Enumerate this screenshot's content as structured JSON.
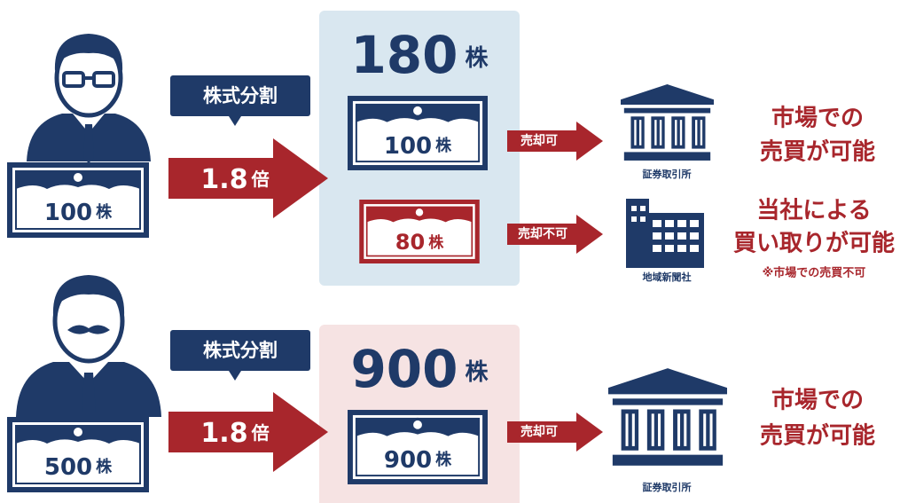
{
  "rows": [
    {
      "holding": {
        "amount": "100",
        "unit": "株"
      },
      "split_label": "株式分割",
      "ratio": {
        "value": "1.8",
        "unit": "倍"
      },
      "result": {
        "amount": "180",
        "unit": "株"
      },
      "certificates": [
        {
          "amount": "100",
          "unit": "株",
          "sale": "売却可",
          "destination": "証券取引所",
          "outcome": [
            "市場での",
            "売買が可能"
          ]
        },
        {
          "amount": "80",
          "unit": "株",
          "sale": "売却不可",
          "destination": "地域新聞社",
          "outcome": [
            "当社による",
            "買い取りが可能"
          ],
          "note": "※市場での売買不可"
        }
      ]
    },
    {
      "holding": {
        "amount": "500",
        "unit": "株"
      },
      "split_label": "株式分割",
      "ratio": {
        "value": "1.8",
        "unit": "倍"
      },
      "result": {
        "amount": "900",
        "unit": "株"
      },
      "certificates": [
        {
          "amount": "900",
          "unit": "株",
          "sale": "売却可",
          "destination": "証券取引所",
          "outcome": [
            "市場での",
            "売買が可能"
          ]
        }
      ]
    }
  ]
}
